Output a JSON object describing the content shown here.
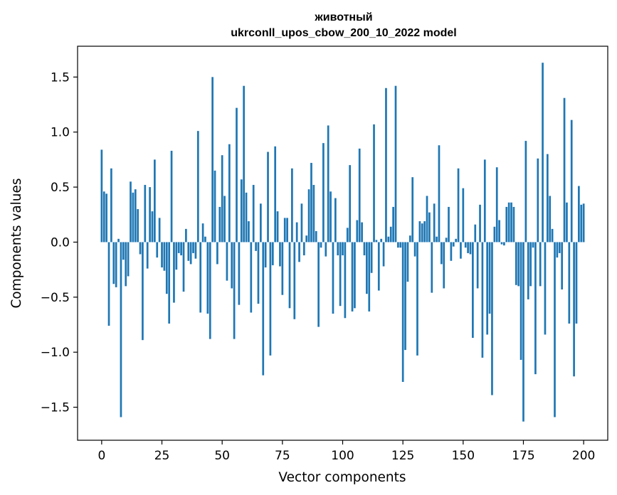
{
  "chart_data": {
    "type": "bar",
    "title_line1": "животный",
    "title_line2": "ukrconll_upos_cbow_200_10_2022 model",
    "xlabel": "Vector components",
    "ylabel": "Components values",
    "xlim": [
      -10,
      210
    ],
    "ylim": [
      -1.8,
      1.78
    ],
    "xticks": [
      0,
      25,
      50,
      75,
      100,
      125,
      150,
      175,
      200
    ],
    "yticks": [
      -1.5,
      -1.0,
      -0.5,
      0.0,
      0.5,
      1.0,
      1.5
    ],
    "ytick_labels": [
      "−1.5",
      "−1.0",
      "−0.5",
      "0.0",
      "0.5",
      "1.0",
      "1.5"
    ],
    "bar_color": "#1f77b4",
    "values": [
      0.84,
      0.46,
      0.44,
      -0.76,
      0.67,
      -0.38,
      -0.41,
      0.03,
      -1.59,
      -0.16,
      -0.4,
      -0.31,
      0.55,
      0.45,
      0.48,
      0.3,
      -0.11,
      -0.89,
      0.52,
      -0.24,
      0.5,
      0.28,
      0.75,
      -0.14,
      0.22,
      -0.23,
      -0.26,
      -0.47,
      -0.74,
      0.83,
      -0.55,
      -0.25,
      -0.1,
      -0.12,
      -0.45,
      0.12,
      -0.17,
      -0.2,
      -0.1,
      -0.15,
      1.01,
      -0.64,
      0.17,
      0.05,
      -0.65,
      -0.88,
      1.5,
      0.65,
      -0.2,
      0.32,
      0.79,
      0.42,
      -0.35,
      0.89,
      -0.42,
      -0.88,
      1.22,
      -0.57,
      0.57,
      1.42,
      0.45,
      0.19,
      -0.64,
      0.52,
      -0.08,
      -0.56,
      0.35,
      -1.21,
      -0.23,
      0.82,
      -1.03,
      -0.21,
      0.87,
      0.28,
      -0.22,
      -0.48,
      0.22,
      0.22,
      -0.6,
      0.67,
      -0.7,
      0.18,
      -0.18,
      0.35,
      -0.12,
      0.06,
      0.48,
      0.72,
      0.52,
      0.1,
      -0.77,
      -0.05,
      0.9,
      -0.13,
      1.06,
      0.46,
      -0.65,
      0.4,
      -0.12,
      -0.58,
      -0.12,
      -0.69,
      0.13,
      0.7,
      -0.63,
      -0.6,
      0.2,
      0.85,
      0.18,
      -0.12,
      -0.47,
      -0.63,
      -0.28,
      1.07,
      0.02,
      -0.44,
      0.03,
      -0.22,
      1.4,
      0.05,
      0.14,
      0.32,
      1.42,
      -0.05,
      -0.05,
      -1.27,
      -0.98,
      -0.36,
      0.06,
      0.59,
      -0.13,
      -1.03,
      0.19,
      0.17,
      0.19,
      0.42,
      0.27,
      -0.46,
      0.35,
      0.05,
      0.88,
      -0.2,
      -0.42,
      0.04,
      0.32,
      -0.17,
      -0.04,
      0.03,
      0.67,
      -0.15,
      0.49,
      -0.05,
      -0.1,
      -0.11,
      -0.87,
      0.16,
      -0.42,
      0.34,
      -1.05,
      0.75,
      -0.84,
      -0.65,
      -1.39,
      0.14,
      0.68,
      0.2,
      -0.02,
      -0.03,
      0.32,
      0.36,
      0.36,
      0.32,
      -0.39,
      -0.4,
      -1.07,
      -1.63,
      0.92,
      -0.52,
      -0.4,
      -0.05,
      -1.2,
      0.76,
      -0.4,
      1.63,
      -0.84,
      0.8,
      0.42,
      0.12,
      -1.59,
      -0.14,
      -0.1,
      -0.43,
      1.31,
      0.36,
      -0.74,
      1.11,
      -1.22,
      -0.74,
      0.51,
      0.34,
      0.35
    ]
  }
}
